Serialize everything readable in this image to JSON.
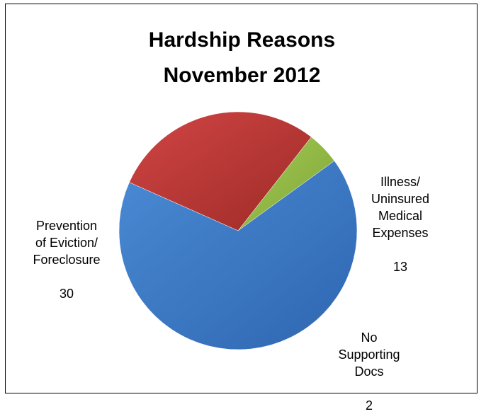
{
  "chart_data": {
    "type": "pie",
    "title": [
      "Hardship Reasons",
      "November 2012"
    ],
    "slices": [
      {
        "label_lines": [
          "Illness/",
          "Uninsured",
          "Medical",
          "Expenses"
        ],
        "value": 13,
        "color": "#C0392B"
      },
      {
        "label_lines": [
          "No",
          "Supporting",
          "Docs"
        ],
        "value": 2,
        "color": "#8DB43E"
      },
      {
        "label_lines": [
          "Prevention",
          "of Eviction/",
          "Foreclosure"
        ],
        "value": 30,
        "color": "#3A78C6"
      }
    ]
  }
}
